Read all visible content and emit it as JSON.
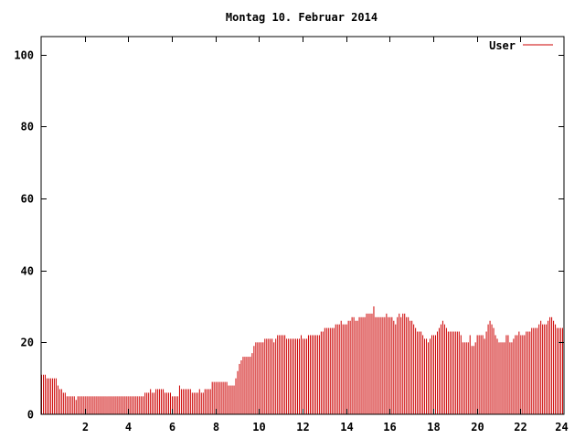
{
  "chart_data": {
    "type": "bar",
    "title": "Montag 10. Februar 2014",
    "xlabel": "",
    "ylabel": "",
    "xlim": [
      0,
      24
    ],
    "ylim": [
      0,
      105
    ],
    "xticks": [
      2,
      4,
      6,
      8,
      10,
      12,
      14,
      16,
      18,
      20,
      22,
      24
    ],
    "yticks": [
      0,
      20,
      40,
      60,
      80,
      100
    ],
    "legend_position": "top-right",
    "grid": false,
    "series": [
      {
        "name": "User",
        "color": "#cc0000",
        "interval_minutes": 5,
        "values": [
          11,
          11,
          11,
          10,
          10,
          10,
          10,
          10,
          10,
          8,
          7,
          7,
          6,
          6,
          5,
          5,
          5,
          5,
          5,
          4,
          5,
          5,
          5,
          5,
          5,
          5,
          5,
          5,
          5,
          5,
          5,
          5,
          5,
          5,
          5,
          5,
          5,
          5,
          5,
          5,
          5,
          5,
          5,
          5,
          5,
          5,
          5,
          5,
          5,
          5,
          5,
          5,
          5,
          5,
          5,
          5,
          5,
          6,
          6,
          6,
          7,
          6,
          6,
          7,
          7,
          7,
          7,
          7,
          6,
          6,
          6,
          6,
          5,
          5,
          5,
          5,
          8,
          7,
          7,
          7,
          7,
          7,
          7,
          6,
          6,
          6,
          6,
          7,
          6,
          6,
          7,
          7,
          7,
          7,
          9,
          9,
          9,
          9,
          9,
          9,
          9,
          9,
          9,
          8,
          8,
          8,
          8,
          10,
          12,
          14,
          15,
          16,
          16,
          16,
          16,
          16,
          17,
          19,
          20,
          20,
          20,
          20,
          20,
          21,
          21,
          21,
          21,
          21,
          20,
          21,
          22,
          22,
          22,
          22,
          22,
          21,
          21,
          21,
          21,
          21,
          21,
          21,
          21,
          22,
          21,
          21,
          21,
          22,
          22,
          22,
          22,
          22,
          22,
          22,
          23,
          23,
          24,
          24,
          24,
          24,
          24,
          24,
          25,
          25,
          25,
          26,
          25,
          25,
          25,
          26,
          26,
          27,
          27,
          26,
          26,
          27,
          27,
          27,
          27,
          28,
          28,
          28,
          28,
          30,
          27,
          27,
          27,
          27,
          27,
          27,
          28,
          27,
          27,
          27,
          26,
          25,
          27,
          28,
          27,
          28,
          28,
          27,
          27,
          26,
          26,
          25,
          24,
          23,
          23,
          23,
          22,
          21,
          21,
          20,
          21,
          22,
          22,
          22,
          23,
          24,
          25,
          26,
          25,
          24,
          23,
          23,
          23,
          23,
          23,
          23,
          23,
          22,
          20,
          20,
          20,
          20,
          22,
          19,
          19,
          20,
          22,
          22,
          22,
          22,
          21,
          23,
          25,
          26,
          25,
          24,
          22,
          21,
          20,
          20,
          20,
          20,
          22,
          22,
          20,
          20,
          21,
          22,
          22,
          23,
          22,
          22,
          22,
          23,
          23,
          23,
          24,
          24,
          24,
          24,
          25,
          26,
          25,
          25,
          25,
          26,
          27,
          27,
          26,
          25,
          24,
          24,
          24,
          24
        ]
      }
    ]
  }
}
